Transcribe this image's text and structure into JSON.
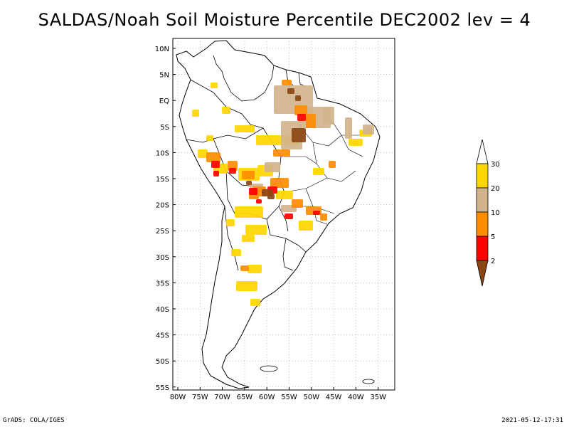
{
  "title": "SALDAS/Noah Soil Moisture Percentile DEC2002 lev = 4",
  "map": {
    "lat_labels": [
      "10N",
      "5N",
      "EQ",
      "5S",
      "10S",
      "15S",
      "20S",
      "25S",
      "30S",
      "35S",
      "40S",
      "45S",
      "50S",
      "55S"
    ],
    "lon_labels": [
      "80W",
      "75W",
      "70W",
      "65W",
      "60W",
      "55W",
      "50W",
      "45W",
      "40W",
      "35W"
    ],
    "grid": true,
    "region": "South America"
  },
  "colorbar": {
    "labels": [
      "2",
      "5",
      "10",
      "20",
      "30"
    ],
    "colors": [
      "#8b4513",
      "#ff0000",
      "#ff8c00",
      "#d2b48c",
      "#ffd700",
      "#ffffff"
    ],
    "orientation": "vertical",
    "position": "right"
  },
  "footer": {
    "left": "GrADS: COLA/IGES",
    "right": "2021-05-12-17:31"
  }
}
